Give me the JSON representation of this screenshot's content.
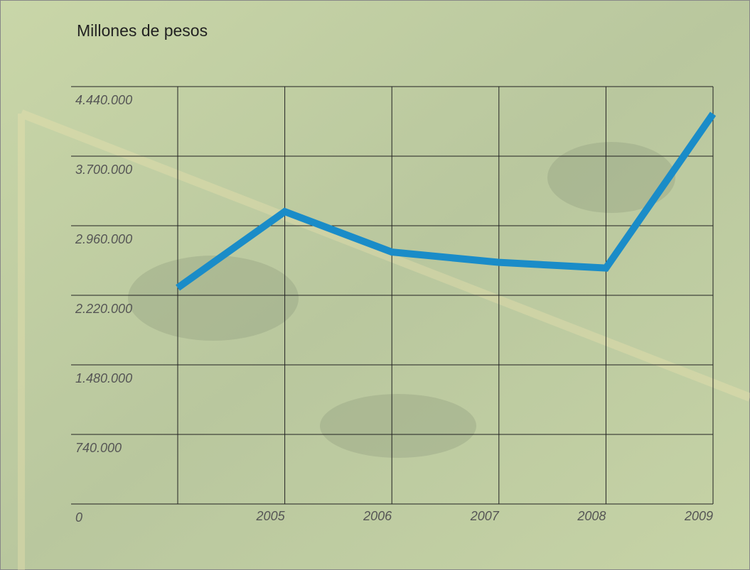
{
  "chart_data": {
    "type": "line",
    "title": "Millones de pesos",
    "categories": [
      null,
      "2005",
      "2006",
      "2007",
      "2008",
      "2009"
    ],
    "values": [
      2300000,
      3110000,
      2680000,
      2570000,
      2510000,
      4150000
    ],
    "color": "#1a8cc8",
    "ylim": [
      0,
      4440000
    ],
    "yticks": [
      0,
      {
        "value": 740000,
        "label": "740.000"
      },
      {
        "value": 1480000,
        "label": "1.480.000"
      },
      {
        "value": 2220000,
        "label": "2.220.000"
      },
      {
        "value": 2960000,
        "label": "2.960.000"
      },
      {
        "value": 3700000,
        "label": "3.700.000"
      },
      {
        "value": 4440000,
        "label": "4.440.000"
      }
    ],
    "grid": true
  }
}
